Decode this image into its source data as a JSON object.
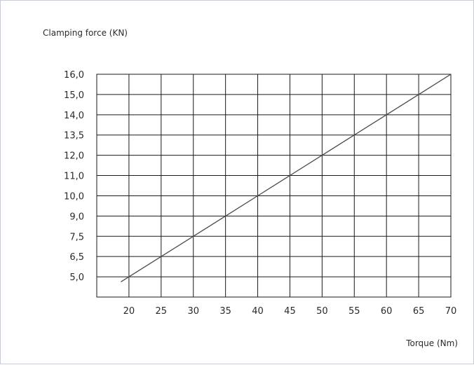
{
  "chart_data": {
    "type": "line",
    "ylabel": "Clamping force (KN)",
    "xlabel": "Torque (Nm)",
    "title": "",
    "x_ticks": [
      "20",
      "25",
      "30",
      "35",
      "40",
      "45",
      "50",
      "55",
      "60",
      "65",
      "70"
    ],
    "y_ticks": [
      "16,0",
      "15,0",
      "14,0",
      "13,5",
      "12,0",
      "11,0",
      "10,0",
      "9,0",
      "7,5",
      "6,5",
      "5,0"
    ],
    "grid": true,
    "xlim": [
      15,
      70
    ],
    "series": [
      {
        "x": [
          20,
          25,
          30,
          35,
          40,
          45,
          50,
          55,
          60,
          65,
          70
        ],
        "y": [
          "5,0",
          "6,5",
          "7,5",
          "9,0",
          "10,0",
          "11,0",
          "12,0",
          "13,5",
          "14,0",
          "15,0",
          "16,0"
        ]
      }
    ],
    "colors": {
      "grid": "#1a1a1a",
      "line": "#4a4a4a",
      "text": "#2a2a2a"
    }
  }
}
